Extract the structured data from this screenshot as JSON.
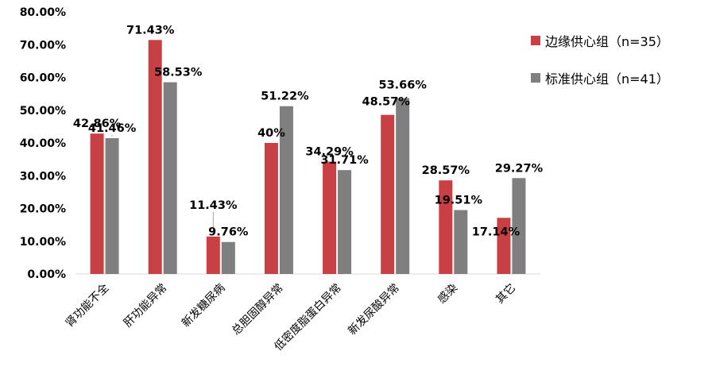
{
  "colors": {
    "series1": "#c94044",
    "series2": "#7f7f7f",
    "axis": "#d9d9d9"
  },
  "chart_data": {
    "type": "bar",
    "categories": [
      "肾功能不全",
      "肝功能异常",
      "新发糖尿病",
      "总胆固醇异常",
      "低密度脂蛋白异常",
      "新发尿酸异常",
      "感染",
      "其它"
    ],
    "series": [
      {
        "name": "边缘供心组（n=35）",
        "values": [
          42.86,
          71.43,
          11.43,
          40,
          34.29,
          48.57,
          28.57,
          17.14
        ],
        "labels": [
          "42.86%",
          "71.43%",
          "11.43%",
          "40%",
          "34.29%",
          "48.57%",
          "28.57%",
          "17.14%"
        ]
      },
      {
        "name": "标准供心组（n=41）",
        "values": [
          41.46,
          58.53,
          9.76,
          51.22,
          31.71,
          53.66,
          19.51,
          29.27
        ],
        "labels": [
          "41.46%",
          "58.53%",
          "9.76%",
          "51.22%",
          "31.71%",
          "53.66%",
          "19.51%",
          "29.27%"
        ]
      }
    ],
    "yticks": [
      "0.00%",
      "10.00%",
      "20.00%",
      "30.00%",
      "40.00%",
      "50.00%",
      "60.00%",
      "70.00%",
      "80.00%"
    ],
    "ylim": [
      0,
      80
    ],
    "title": "",
    "xlabel": "",
    "ylabel": "",
    "legend": "right",
    "grid": false
  }
}
